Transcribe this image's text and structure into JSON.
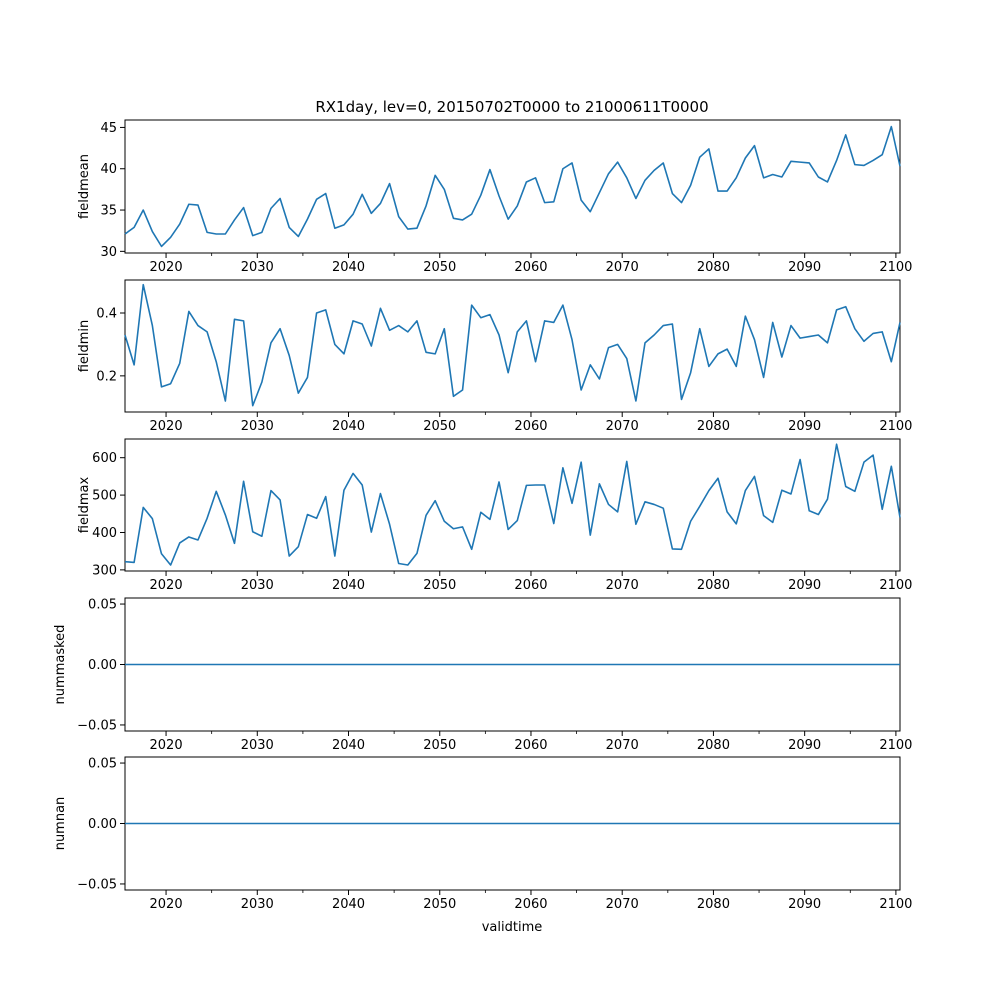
{
  "chart_data": {
    "type": "line",
    "title": "RX1day, lev=0, 20150702T0000 to 21000611T0000",
    "xlabel": "validtime",
    "xlim": [
      2015.5,
      2100.45
    ],
    "xticks": [
      2020,
      2030,
      2040,
      2050,
      2060,
      2070,
      2080,
      2090,
      2100
    ],
    "color": "#1f77b4",
    "grid": false,
    "panels": [
      {
        "ylabel": "fieldmean",
        "ylim": [
          29.8,
          45.9
        ],
        "yticks": [
          30,
          35,
          40,
          45
        ],
        "ytick_labels": [
          "30",
          "35",
          "40",
          "45"
        ],
        "x": [
          2015.5,
          2016.5,
          2017.5,
          2018.5,
          2019.5,
          2020.5,
          2021.5,
          2022.5,
          2023.5,
          2024.5,
          2025.5,
          2026.5,
          2027.5,
          2028.5,
          2029.5,
          2030.5,
          2031.5,
          2032.5,
          2033.5,
          2034.5,
          2035.5,
          2036.5,
          2037.5,
          2038.5,
          2039.5,
          2040.5,
          2041.5,
          2042.5,
          2043.5,
          2044.5,
          2045.5,
          2046.5,
          2047.5,
          2048.5,
          2049.5,
          2050.5,
          2051.5,
          2052.5,
          2053.5,
          2054.5,
          2055.5,
          2056.5,
          2057.5,
          2058.5,
          2059.5,
          2060.5,
          2061.5,
          2062.5,
          2063.5,
          2064.5,
          2065.5,
          2066.5,
          2067.5,
          2068.5,
          2069.5,
          2070.5,
          2071.5,
          2072.5,
          2073.5,
          2074.5,
          2075.5,
          2076.5,
          2077.5,
          2078.5,
          2079.5,
          2080.5,
          2081.5,
          2082.5,
          2083.5,
          2084.5,
          2085.5,
          2086.5,
          2087.5,
          2088.5,
          2089.5,
          2090.5,
          2091.5,
          2092.5,
          2093.5,
          2094.5,
          2095.5,
          2096.5,
          2097.5,
          2098.5,
          2099.5,
          2100.45
        ],
        "values": [
          32.1,
          32.9,
          35.0,
          32.4,
          30.6,
          31.7,
          33.3,
          35.7,
          35.6,
          32.3,
          32.1,
          32.1,
          33.8,
          35.3,
          31.9,
          32.3,
          35.2,
          36.4,
          32.9,
          31.8,
          33.9,
          36.3,
          37.0,
          32.8,
          33.2,
          34.5,
          36.9,
          34.6,
          35.8,
          38.2,
          34.2,
          32.7,
          32.8,
          35.5,
          39.2,
          37.5,
          34.0,
          33.8,
          34.5,
          36.8,
          39.9,
          36.7,
          33.9,
          35.5,
          38.4,
          38.9,
          35.9,
          36.0,
          40.0,
          40.7,
          36.2,
          34.8,
          37.1,
          39.4,
          40.8,
          38.9,
          36.4,
          38.6,
          39.8,
          40.7,
          37.0,
          35.9,
          38.0,
          41.4,
          42.4,
          37.3,
          37.3,
          38.9,
          41.3,
          42.8,
          38.9,
          39.3,
          39.0,
          40.9,
          40.8,
          40.7,
          39.0,
          38.4,
          41.0,
          44.1,
          40.5,
          40.4,
          41.0,
          41.7,
          45.1,
          40.3
        ]
      },
      {
        "ylabel": "fieldmin",
        "ylim": [
          0.085,
          0.505
        ],
        "yticks": [
          0.2,
          0.4
        ],
        "ytick_labels": [
          "0.2",
          "0.4"
        ],
        "x": [
          2015.5,
          2016.5,
          2017.5,
          2018.5,
          2019.5,
          2020.5,
          2021.5,
          2022.5,
          2023.5,
          2024.5,
          2025.5,
          2026.5,
          2027.5,
          2028.5,
          2029.5,
          2030.5,
          2031.5,
          2032.5,
          2033.5,
          2034.5,
          2035.5,
          2036.5,
          2037.5,
          2038.5,
          2039.5,
          2040.5,
          2041.5,
          2042.5,
          2043.5,
          2044.5,
          2045.5,
          2046.5,
          2047.5,
          2048.5,
          2049.5,
          2050.5,
          2051.5,
          2052.5,
          2053.5,
          2054.5,
          2055.5,
          2056.5,
          2057.5,
          2058.5,
          2059.5,
          2060.5,
          2061.5,
          2062.5,
          2063.5,
          2064.5,
          2065.5,
          2066.5,
          2067.5,
          2068.5,
          2069.5,
          2070.5,
          2071.5,
          2072.5,
          2073.5,
          2074.5,
          2075.5,
          2076.5,
          2077.5,
          2078.5,
          2079.5,
          2080.5,
          2081.5,
          2082.5,
          2083.5,
          2084.5,
          2085.5,
          2086.5,
          2087.5,
          2088.5,
          2089.5,
          2090.5,
          2091.5,
          2092.5,
          2093.5,
          2094.5,
          2095.5,
          2096.5,
          2097.5,
          2098.5,
          2099.5,
          2100.45
        ],
        "values": [
          0.33,
          0.235,
          0.49,
          0.36,
          0.165,
          0.175,
          0.24,
          0.405,
          0.36,
          0.34,
          0.245,
          0.12,
          0.38,
          0.375,
          0.105,
          0.18,
          0.305,
          0.35,
          0.265,
          0.145,
          0.195,
          0.4,
          0.41,
          0.3,
          0.27,
          0.375,
          0.365,
          0.295,
          0.415,
          0.345,
          0.36,
          0.34,
          0.375,
          0.275,
          0.27,
          0.35,
          0.135,
          0.155,
          0.425,
          0.385,
          0.395,
          0.33,
          0.21,
          0.34,
          0.375,
          0.245,
          0.375,
          0.37,
          0.425,
          0.315,
          0.155,
          0.235,
          0.19,
          0.29,
          0.3,
          0.255,
          0.12,
          0.305,
          0.33,
          0.36,
          0.365,
          0.125,
          0.21,
          0.35,
          0.23,
          0.27,
          0.285,
          0.23,
          0.39,
          0.315,
          0.195,
          0.37,
          0.26,
          0.36,
          0.32,
          0.325,
          0.33,
          0.305,
          0.41,
          0.42,
          0.35,
          0.31,
          0.335,
          0.34,
          0.245,
          0.37
        ]
      },
      {
        "ylabel": "fieldmax",
        "ylim": [
          297,
          650
        ],
        "yticks": [
          300,
          400,
          500,
          600
        ],
        "ytick_labels": [
          "300",
          "400",
          "500",
          "600"
        ],
        "x": [
          2015.5,
          2016.5,
          2017.5,
          2018.5,
          2019.5,
          2020.5,
          2021.5,
          2022.5,
          2023.5,
          2024.5,
          2025.5,
          2026.5,
          2027.5,
          2028.5,
          2029.5,
          2030.5,
          2031.5,
          2032.5,
          2033.5,
          2034.5,
          2035.5,
          2036.5,
          2037.5,
          2038.5,
          2039.5,
          2040.5,
          2041.5,
          2042.5,
          2043.5,
          2044.5,
          2045.5,
          2046.5,
          2047.5,
          2048.5,
          2049.5,
          2050.5,
          2051.5,
          2052.5,
          2053.5,
          2054.5,
          2055.5,
          2056.5,
          2057.5,
          2058.5,
          2059.5,
          2060.5,
          2061.5,
          2062.5,
          2063.5,
          2064.5,
          2065.5,
          2066.5,
          2067.5,
          2068.5,
          2069.5,
          2070.5,
          2071.5,
          2072.5,
          2073.5,
          2074.5,
          2075.5,
          2076.5,
          2077.5,
          2078.5,
          2079.5,
          2080.5,
          2081.5,
          2082.5,
          2083.5,
          2084.5,
          2085.5,
          2086.5,
          2087.5,
          2088.5,
          2089.5,
          2090.5,
          2091.5,
          2092.5,
          2093.5,
          2094.5,
          2095.5,
          2096.5,
          2097.5,
          2098.5,
          2099.5,
          2100.45
        ],
        "values": [
          322,
          320,
          467,
          437,
          343,
          313,
          372,
          388,
          380,
          438,
          510,
          447,
          371,
          537,
          402,
          390,
          512,
          487,
          337,
          362,
          448,
          438,
          496,
          337,
          513,
          558,
          527,
          401,
          504,
          422,
          317,
          313,
          344,
          446,
          485,
          430,
          410,
          415,
          355,
          454,
          435,
          535,
          408,
          432,
          526,
          527,
          527,
          424,
          573,
          478,
          588,
          393,
          530,
          475,
          455,
          590,
          422,
          482,
          475,
          465,
          356,
          355,
          430,
          470,
          512,
          545,
          455,
          423,
          512,
          550,
          445,
          427,
          513,
          503,
          595,
          458,
          448,
          489,
          636,
          523,
          510,
          588,
          607,
          462,
          577,
          440
        ]
      },
      {
        "ylabel": "nummasked",
        "ylim": [
          -0.055,
          0.055
        ],
        "yticks": [
          -0.05,
          0.0,
          0.05
        ],
        "ytick_labels": [
          "−0.05",
          "0.00",
          "0.05"
        ],
        "x": [
          2015.5,
          2100.45
        ],
        "values": [
          0,
          0
        ]
      },
      {
        "ylabel": "numnan",
        "ylim": [
          -0.055,
          0.055
        ],
        "yticks": [
          -0.05,
          0.0,
          0.05
        ],
        "ytick_labels": [
          "−0.05",
          "0.00",
          "0.05"
        ],
        "x": [
          2015.5,
          2100.45
        ],
        "values": [
          0,
          0
        ]
      }
    ]
  }
}
